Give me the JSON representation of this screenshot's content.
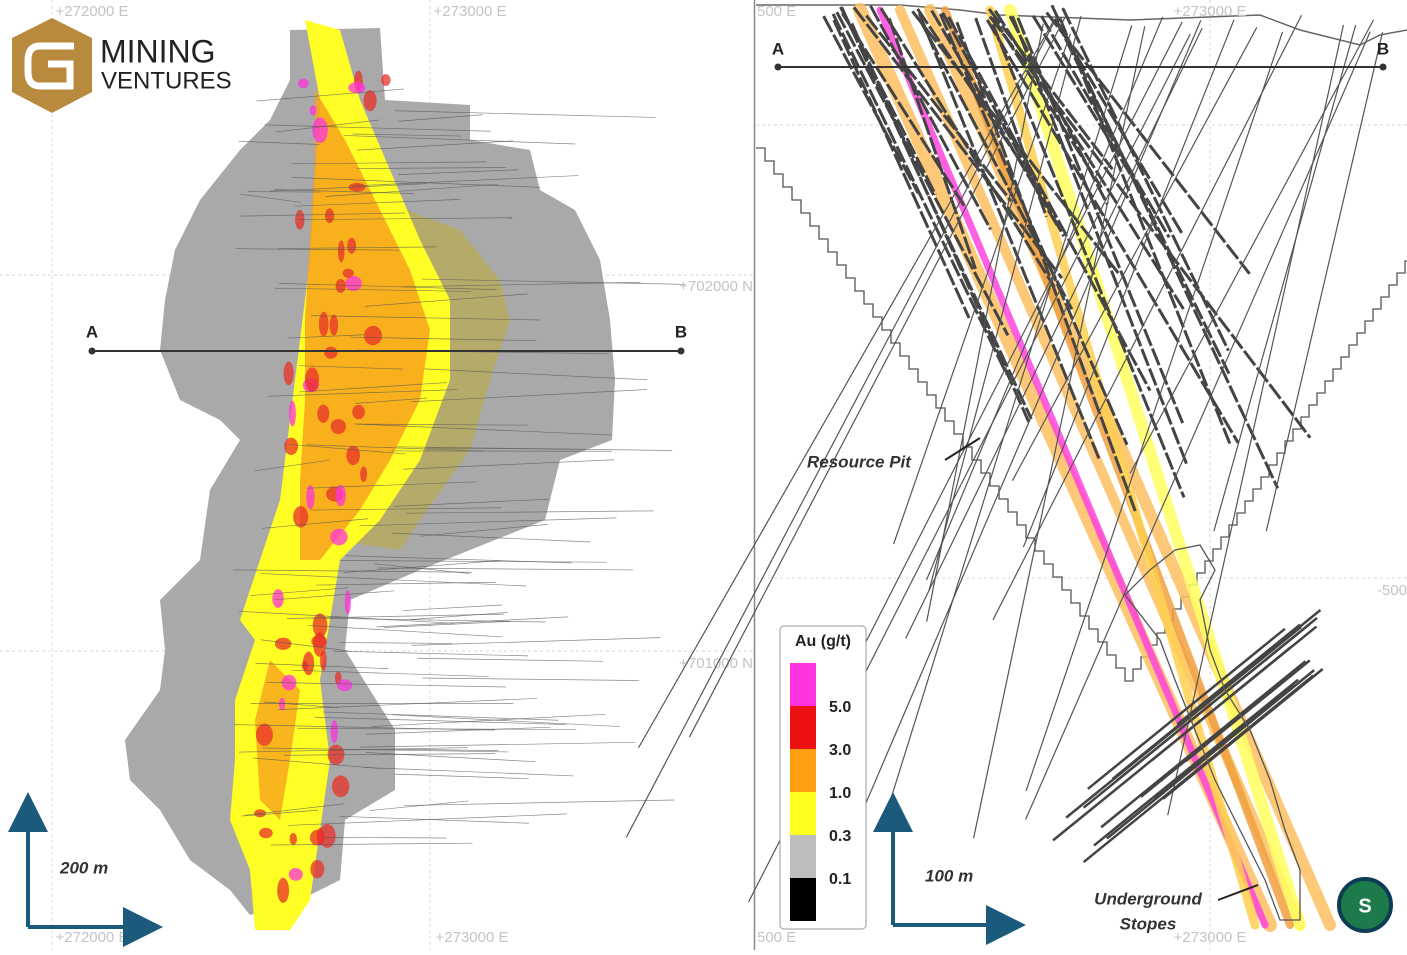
{
  "logo": {
    "line1": "MINING",
    "line2": "VENTURES"
  },
  "plan_view": {
    "top_labels": [
      "+272000 E",
      "+273000 E"
    ],
    "bottom_labels": [
      "+272000 E",
      "+273000 E"
    ],
    "side_labels": [
      "+702000 N",
      "+701000 N"
    ],
    "section_start": "A",
    "section_end": "B",
    "scale": "200 m"
  },
  "section_view": {
    "top_labels": [
      "500 E",
      "+273000 E"
    ],
    "bottom_labels": [
      "500 E",
      "+273000 E"
    ],
    "side_label": "-500",
    "section_start": "A",
    "section_end": "B",
    "pit_label": "Resource Pit",
    "stopes_label": [
      "Underground",
      "Stopes"
    ],
    "scale": "100 m",
    "badge": "S"
  },
  "legend": {
    "title": "Au (g/t)",
    "colors": [
      "#ff33dd",
      "#ee1111",
      "#ff9f10",
      "#ffff20",
      "#bdbdbd",
      "#000000"
    ],
    "labels": [
      "5.0",
      "3.0",
      "1.0",
      "0.3",
      "0.1"
    ]
  }
}
